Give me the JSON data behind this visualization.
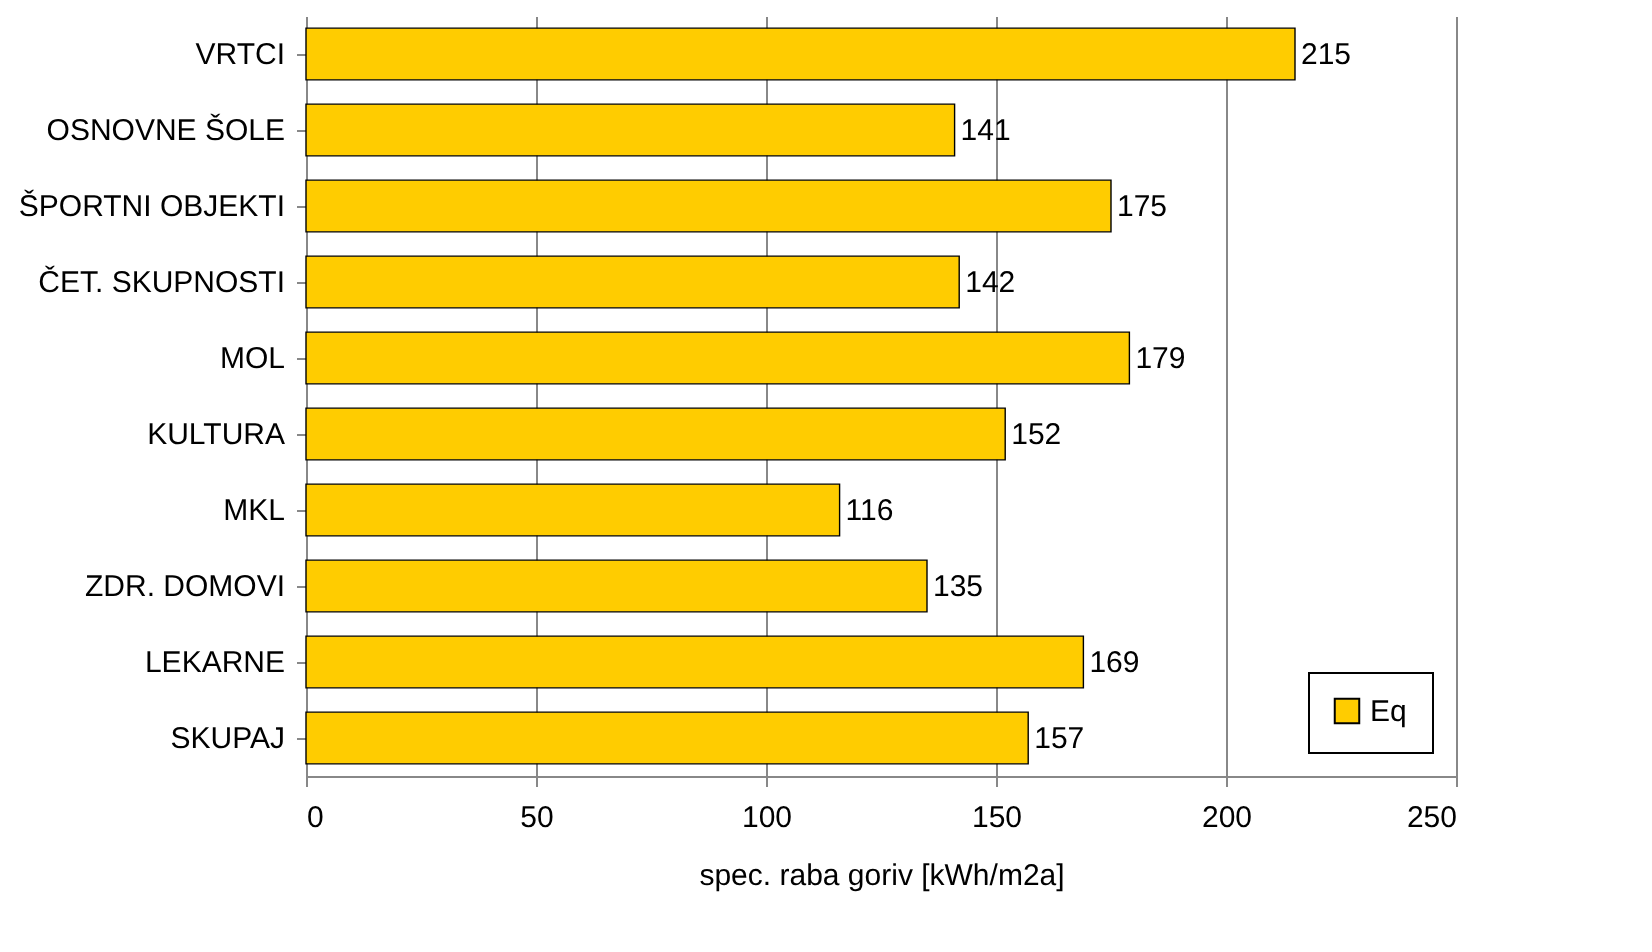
{
  "chart_data": {
    "type": "bar",
    "orientation": "horizontal",
    "xlabel": "spec. raba goriv [kWh/m2a]",
    "categories": [
      "VRTCI",
      "OSNOVNE ŠOLE",
      "ŠPORTNI OBJEKTI",
      "ČET. SKUPNOSTI",
      "MOL",
      "KULTURA",
      "MKL",
      "ZDR. DOMOVI",
      "LEKARNE",
      "SKUPAJ"
    ],
    "series": [
      {
        "name": "Eq",
        "color": "#ffcc00",
        "values": [
          215,
          141,
          175,
          142,
          179,
          152,
          116,
          135,
          169,
          157
        ]
      }
    ],
    "xlim": [
      0,
      250
    ],
    "xticks": [
      0,
      50,
      100,
      150,
      200,
      250
    ],
    "grid": "x",
    "data_labels": true,
    "legend": "bottom right"
  }
}
